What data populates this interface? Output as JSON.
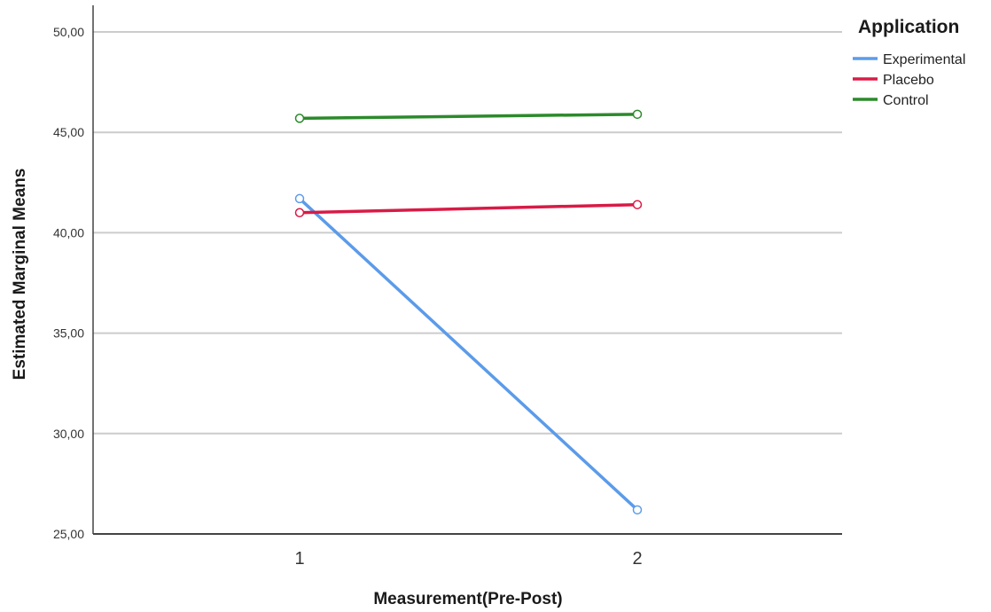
{
  "chart_data": {
    "type": "line",
    "title": "",
    "xlabel": "Measurement(Pre-Post)",
    "ylabel": "Estimated Marginal Means",
    "categories": [
      "1",
      "2"
    ],
    "ylim": [
      25,
      50
    ],
    "yticks": [
      25,
      30,
      35,
      40,
      45,
      50
    ],
    "ytick_labels": [
      "25,00",
      "30,00",
      "35,00",
      "40,00",
      "45,00",
      "50,00"
    ],
    "grid": true,
    "legend": {
      "title": "Application",
      "placement": "top-right"
    },
    "series": [
      {
        "name": "Experimental",
        "values": [
          41.7,
          26.2
        ],
        "color": "#5b9bea"
      },
      {
        "name": "Placebo",
        "values": [
          41.0,
          41.4
        ],
        "color": "#d81b46"
      },
      {
        "name": "Control",
        "values": [
          45.7,
          45.9
        ],
        "color": "#2b8a2b"
      }
    ]
  }
}
